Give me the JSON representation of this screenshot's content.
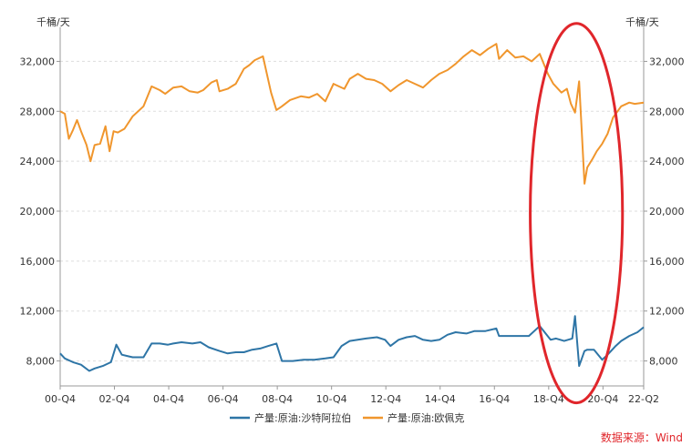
{
  "chart_data": {
    "type": "line",
    "unit_left": "千桶/天",
    "unit_right": "千桶/天",
    "ylim": [
      6000,
      34000
    ],
    "y_ticks": [
      "8,000",
      "12,000",
      "16,000",
      "20,000",
      "24,000",
      "28,000",
      "32,000"
    ],
    "y_tick_values": [
      8000,
      12000,
      16000,
      20000,
      24000,
      28000,
      32000
    ],
    "x_ticks": [
      "00-Q4",
      "02-Q4",
      "04-Q4",
      "06-Q4",
      "08-Q4",
      "10-Q4",
      "12-Q4",
      "14-Q4",
      "16-Q4",
      "18-Q4",
      "20-Q4",
      "22-Q2"
    ],
    "x_tick_values": [
      2000.83,
      2002.83,
      2004.83,
      2006.83,
      2008.83,
      2010.83,
      2012.83,
      2014.83,
      2016.83,
      2018.83,
      2020.83,
      2022.33
    ],
    "xlim": [
      2000.83,
      2022.33
    ],
    "grid": true,
    "legend_position": "bottom",
    "series": [
      {
        "name": "产量:原油:沙特阿拉伯",
        "color": "#2e75a6",
        "x": [
          2000.83,
          2001.0,
          2001.3,
          2001.6,
          2001.9,
          2002.1,
          2002.4,
          2002.7,
          2002.9,
          2003.1,
          2003.3,
          2003.5,
          2003.9,
          2004.2,
          2004.5,
          2004.8,
          2005.0,
          2005.3,
          2005.7,
          2006.0,
          2006.3,
          2006.7,
          2007.0,
          2007.3,
          2007.6,
          2007.9,
          2008.2,
          2008.5,
          2008.8,
          2009.0,
          2009.4,
          2009.8,
          2010.2,
          2010.6,
          2010.9,
          2011.2,
          2011.5,
          2011.8,
          2012.1,
          2012.5,
          2012.8,
          2013.0,
          2013.3,
          2013.6,
          2013.9,
          2014.2,
          2014.5,
          2014.8,
          2015.1,
          2015.4,
          2015.8,
          2016.1,
          2016.5,
          2016.9,
          2017.0,
          2017.4,
          2017.8,
          2018.1,
          2018.5,
          2018.9,
          2019.1,
          2019.4,
          2019.7,
          2019.8,
          2019.95,
          2020.15,
          2020.25,
          2020.5,
          2020.8,
          2021.0,
          2021.3,
          2021.5,
          2021.8,
          2022.1,
          2022.33
        ],
        "values": [
          8600,
          8200,
          7900,
          7700,
          7200,
          7400,
          7600,
          7900,
          9300,
          8500,
          8400,
          8300,
          8300,
          9400,
          9400,
          9300,
          9400,
          9500,
          9400,
          9500,
          9100,
          8800,
          8600,
          8700,
          8700,
          8900,
          9000,
          9200,
          9400,
          8000,
          8000,
          8100,
          8100,
          8200,
          8300,
          9200,
          9600,
          9700,
          9800,
          9900,
          9700,
          9200,
          9700,
          9900,
          10000,
          9700,
          9600,
          9700,
          10100,
          10300,
          10200,
          10400,
          10400,
          10600,
          10000,
          10000,
          10000,
          10000,
          10800,
          9700,
          9800,
          9600,
          9800,
          11600,
          7600,
          8800,
          8900,
          8900,
          8100,
          8500,
          9200,
          9600,
          10000,
          10300,
          10700
        ]
      },
      {
        "name": "产量:原油:欧佩克",
        "color": "#f0962d",
        "x": [
          2000.83,
          2001.0,
          2001.15,
          2001.3,
          2001.45,
          2001.6,
          2001.8,
          2001.95,
          2002.1,
          2002.3,
          2002.5,
          2002.65,
          2002.8,
          2002.95,
          2003.2,
          2003.5,
          2003.9,
          2004.2,
          2004.5,
          2004.7,
          2005.0,
          2005.3,
          2005.6,
          2005.9,
          2006.1,
          2006.4,
          2006.6,
          2006.7,
          2007.0,
          2007.3,
          2007.6,
          2007.8,
          2008.0,
          2008.3,
          2008.6,
          2008.8,
          2009.0,
          2009.3,
          2009.7,
          2010.0,
          2010.3,
          2010.6,
          2010.9,
          2011.1,
          2011.3,
          2011.5,
          2011.8,
          2012.1,
          2012.4,
          2012.7,
          2013.0,
          2013.3,
          2013.6,
          2013.9,
          2014.2,
          2014.5,
          2014.8,
          2015.1,
          2015.4,
          2015.7,
          2016.0,
          2016.3,
          2016.6,
          2016.9,
          2017.0,
          2017.3,
          2017.6,
          2017.9,
          2018.2,
          2018.5,
          2018.8,
          2019.0,
          2019.3,
          2019.5,
          2019.65,
          2019.8,
          2019.95,
          2020.15,
          2020.25,
          2020.45,
          2020.6,
          2020.8,
          2021.0,
          2021.2,
          2021.5,
          2021.8,
          2022.0,
          2022.33
        ],
        "values": [
          28000,
          27800,
          25800,
          26500,
          27300,
          26400,
          25300,
          24000,
          25300,
          25400,
          26800,
          24800,
          26400,
          26300,
          26600,
          27600,
          28400,
          30000,
          29700,
          29400,
          29900,
          30000,
          29600,
          29500,
          29700,
          30300,
          30500,
          29600,
          29800,
          30200,
          31400,
          31700,
          32100,
          32400,
          29500,
          28100,
          28400,
          28900,
          29200,
          29100,
          29400,
          28800,
          30200,
          30000,
          29800,
          30600,
          31000,
          30600,
          30500,
          30200,
          29600,
          30100,
          30500,
          30200,
          29900,
          30500,
          31000,
          31300,
          31800,
          32400,
          32900,
          32500,
          33000,
          33400,
          32200,
          32900,
          32300,
          32400,
          32000,
          32600,
          31000,
          30200,
          29500,
          29800,
          28600,
          27900,
          30400,
          22200,
          23500,
          24200,
          24800,
          25400,
          26200,
          27500,
          28400,
          28700,
          28600,
          28700
        ]
      }
    ],
    "annotation": {
      "type": "ellipse",
      "color": "#e0262b",
      "from_x": 2018.15,
      "to_x": 2021.55,
      "from_y": 8000,
      "to_y": 34600
    }
  },
  "source_text": "数据来源：Wind"
}
